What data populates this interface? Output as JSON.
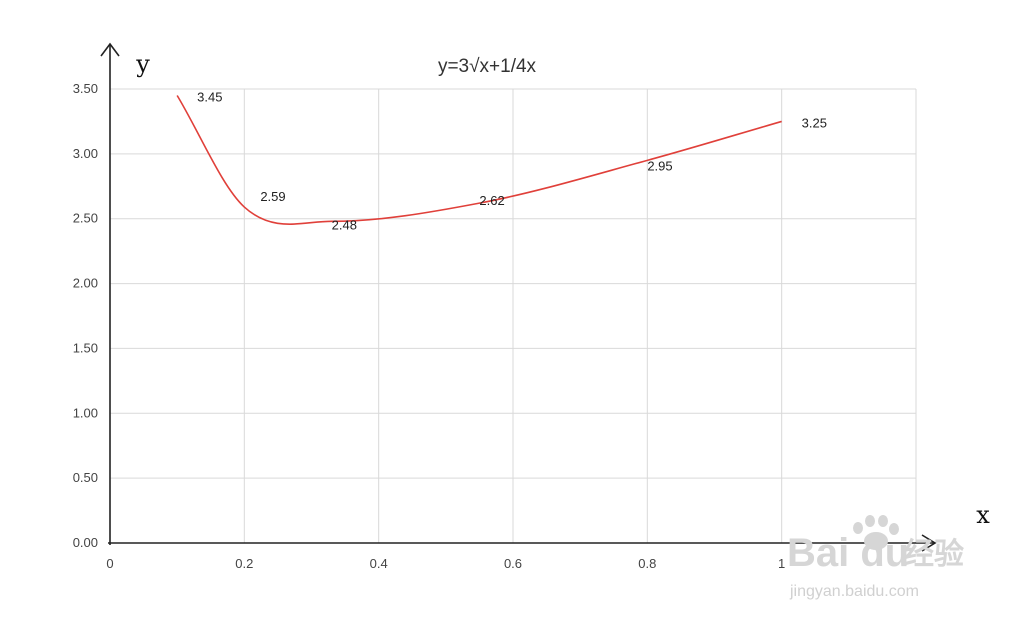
{
  "chart_data": {
    "type": "line",
    "title": "y=3√x+1/4x",
    "xlabel": "x",
    "ylabel": "y",
    "xlim": [
      0,
      1.2
    ],
    "ylim": [
      0,
      3.5
    ],
    "x_ticks": [
      0,
      0.2,
      0.4,
      0.6,
      0.8,
      1
    ],
    "x_tick_labels": [
      "0",
      "0.2",
      "0.4",
      "0.6",
      "0.8",
      "1"
    ],
    "y_ticks": [
      0,
      0.5,
      1,
      1.5,
      2,
      2.5,
      3,
      3.5
    ],
    "y_tick_labels": [
      "0.00",
      "0.50",
      "1.00",
      "1.50",
      "2.00",
      "2.50",
      "3.00",
      "3.50"
    ],
    "grid": true,
    "series": [
      {
        "color": "#e0403a",
        "x": [
          0.1,
          0.2,
          0.33,
          0.55,
          0.8,
          1.0
        ],
        "y": [
          3.45,
          2.59,
          2.48,
          2.62,
          2.95,
          3.25
        ],
        "data_labels": [
          "3.45",
          "2.59",
          "2.48",
          "2.62",
          "2.95",
          "3.25"
        ]
      }
    ]
  },
  "watermark": {
    "brand": "Bai du",
    "brand_cn": "经验",
    "url": "jingyan.baidu.com"
  }
}
